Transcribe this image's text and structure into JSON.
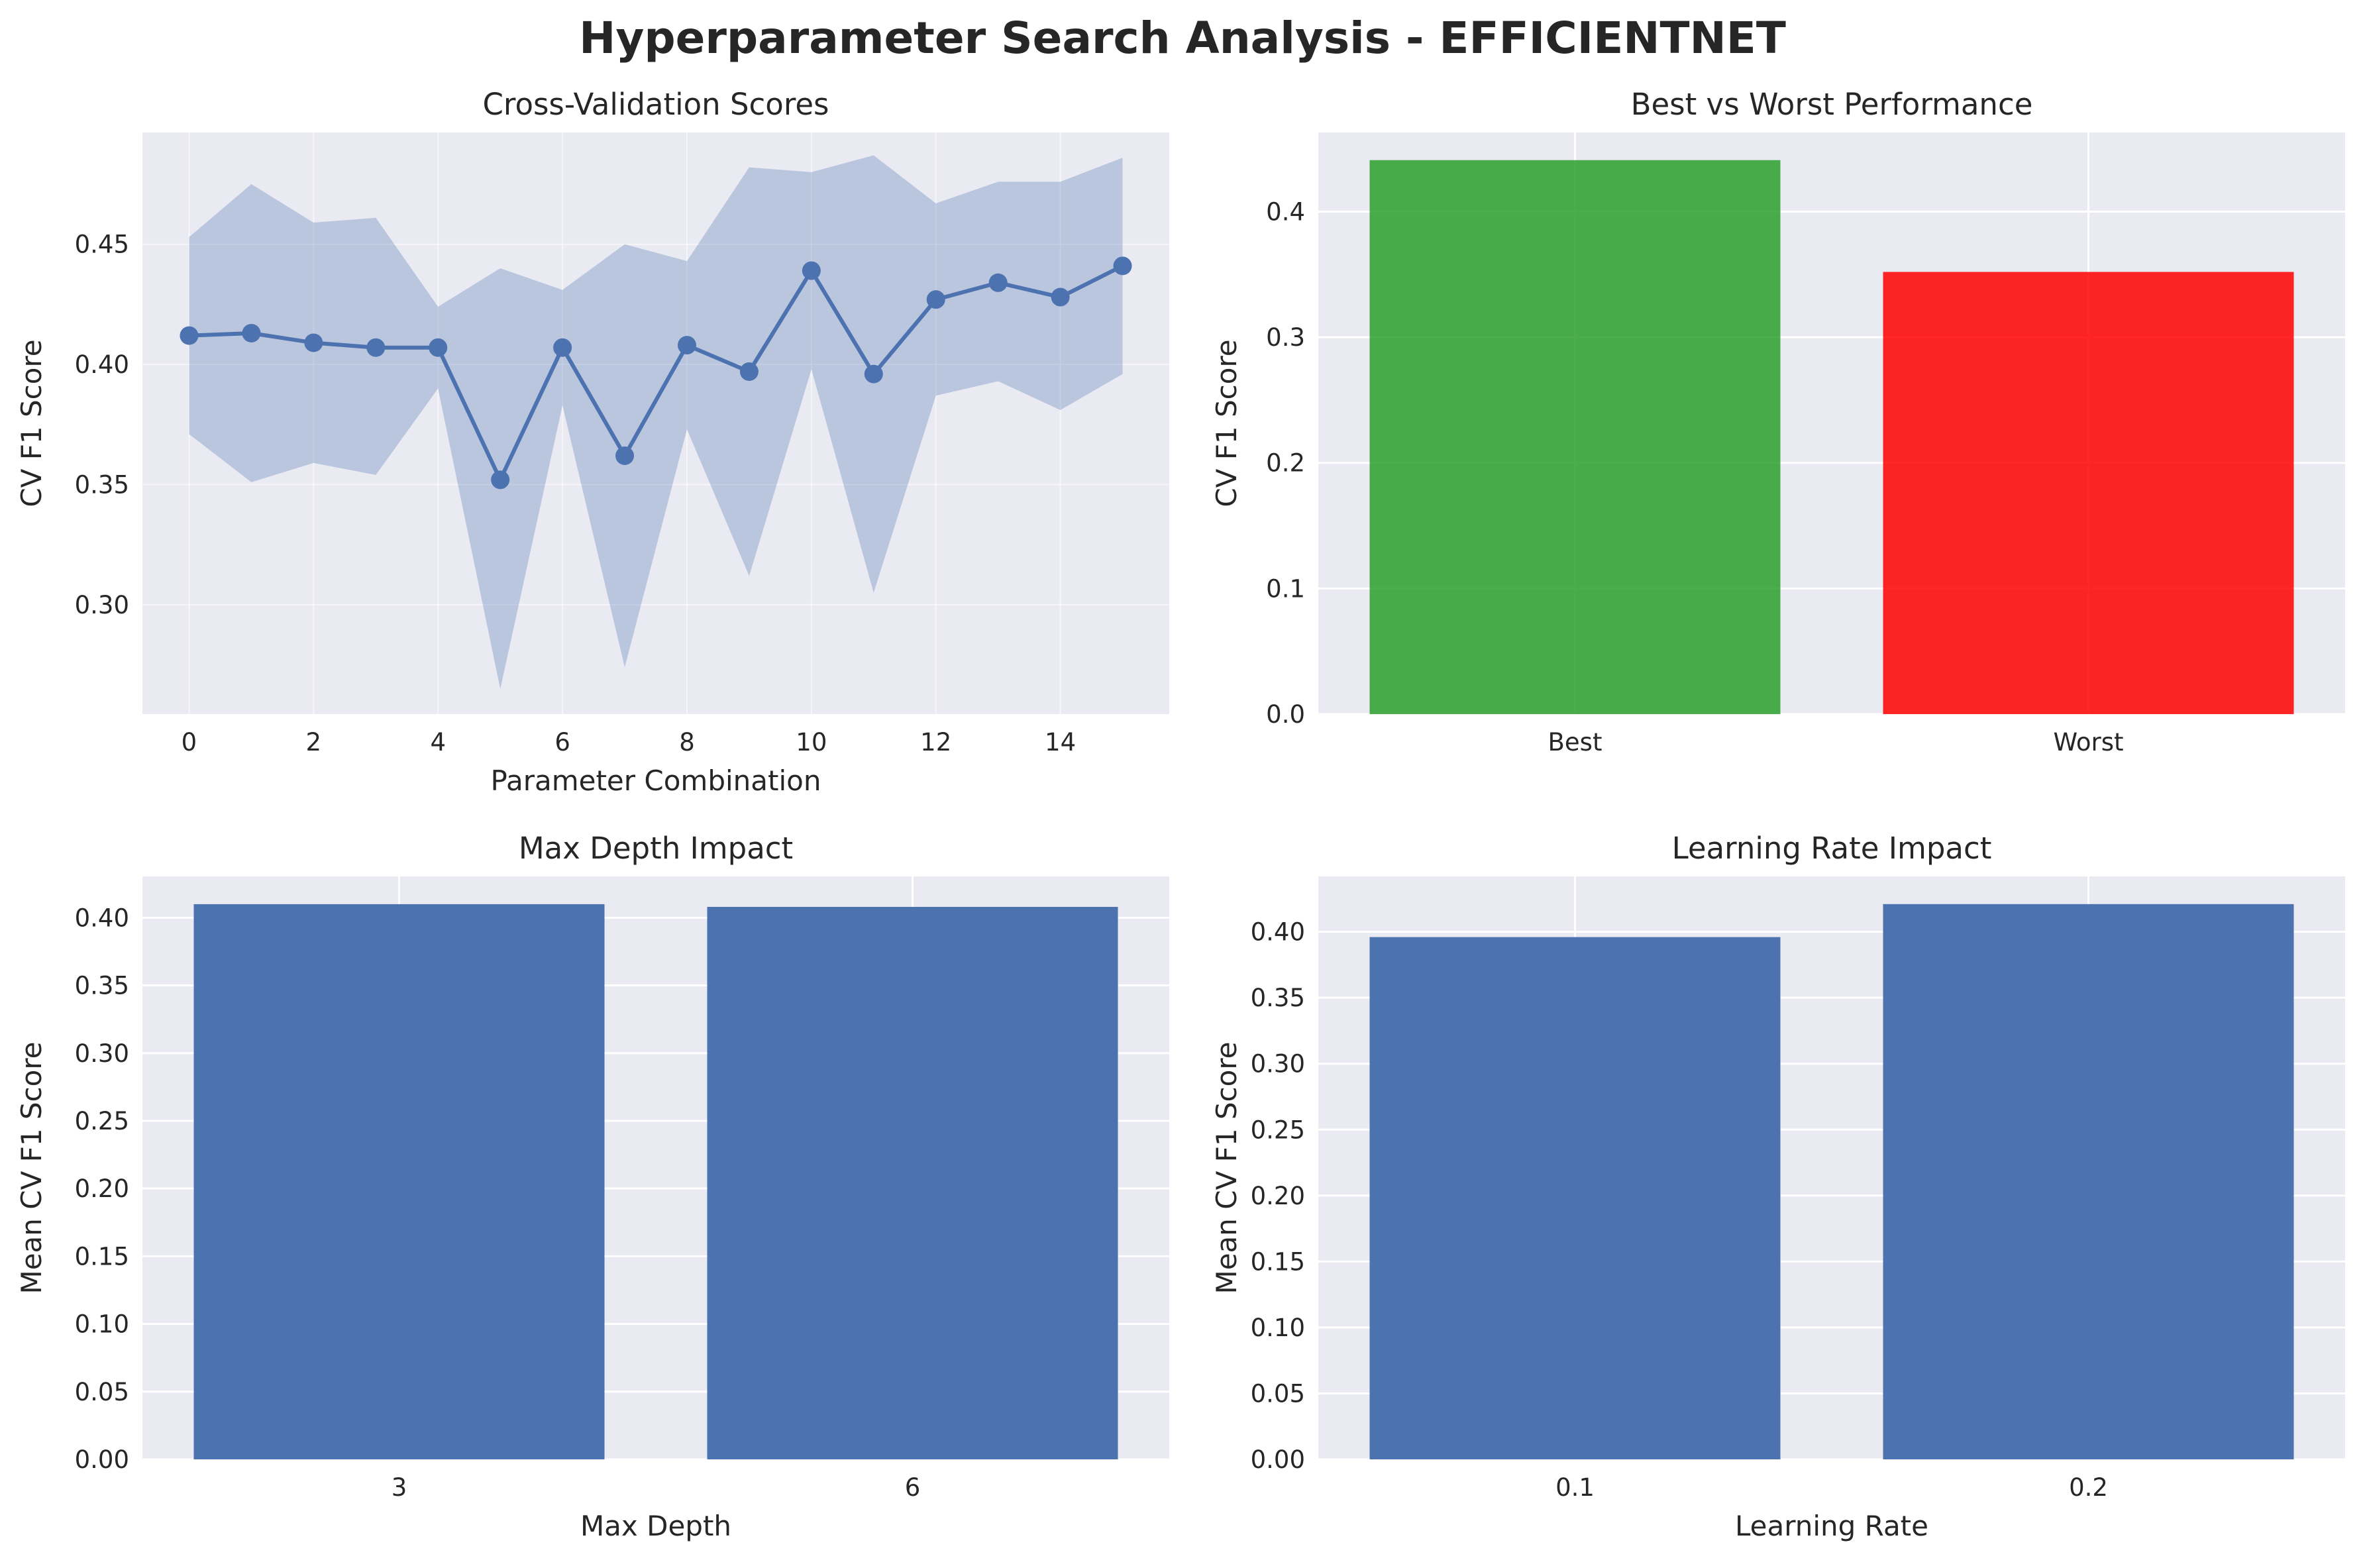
{
  "figure": {
    "title": "Hyperparameter Search Analysis - EFFICIENTNET"
  },
  "chart_data": [
    {
      "type": "line",
      "title": "Cross-Validation Scores",
      "xlabel": "Parameter Combination",
      "ylabel": "CV F1 Score",
      "x": [
        0,
        1,
        2,
        3,
        4,
        5,
        6,
        7,
        8,
        9,
        10,
        11,
        12,
        13,
        14,
        15
      ],
      "series": [
        {
          "values": [
            0.412,
            0.413,
            0.409,
            0.407,
            0.407,
            0.352,
            0.407,
            0.362,
            0.408,
            0.397,
            0.439,
            0.396,
            0.427,
            0.434,
            0.428,
            0.441
          ],
          "upper": [
            0.453,
            0.475,
            0.459,
            0.461,
            0.424,
            0.44,
            0.431,
            0.45,
            0.443,
            0.482,
            0.48,
            0.487,
            0.467,
            0.476,
            0.476,
            0.486
          ],
          "lower": [
            0.371,
            0.351,
            0.359,
            0.354,
            0.39,
            0.265,
            0.383,
            0.274,
            0.373,
            0.312,
            0.398,
            0.305,
            0.387,
            0.393,
            0.381,
            0.396
          ],
          "color": "#4c72b0"
        }
      ],
      "xlim": [
        -0.75,
        15.75
      ],
      "ylim": [
        0.2545,
        0.4965
      ],
      "xticks": [
        "0",
        "2",
        "4",
        "6",
        "8",
        "10",
        "12",
        "14"
      ],
      "yticks": [
        "0.30",
        "0.35",
        "0.40",
        "0.45"
      ],
      "grid": true
    },
    {
      "type": "bar",
      "title": "Best vs Worst Performance",
      "xlabel": "",
      "ylabel": "CV F1 Score",
      "categories": [
        "Best",
        "Worst"
      ],
      "values": [
        0.441,
        0.352
      ],
      "colors": [
        "#2ca02c",
        "#ff0000"
      ],
      "ylim": [
        0,
        0.463
      ],
      "yticks": [
        "0.0",
        "0.1",
        "0.2",
        "0.3",
        "0.4"
      ],
      "grid": true
    },
    {
      "type": "bar",
      "title": "Max Depth Impact",
      "xlabel": "Max Depth",
      "ylabel": "Mean CV F1 Score",
      "categories": [
        "3",
        "6"
      ],
      "values": [
        0.41,
        0.408
      ],
      "colors": [
        "#4c72b0",
        "#4c72b0"
      ],
      "ylim": [
        0,
        0.4305
      ],
      "yticks": [
        "0.00",
        "0.05",
        "0.10",
        "0.15",
        "0.20",
        "0.25",
        "0.30",
        "0.35",
        "0.40"
      ],
      "grid": true
    },
    {
      "type": "bar",
      "title": "Learning Rate Impact",
      "xlabel": "Learning Rate",
      "ylabel": "Mean CV F1 Score",
      "categories": [
        "0.1",
        "0.2"
      ],
      "values": [
        0.396,
        0.421
      ],
      "colors": [
        "#4c72b0",
        "#4c72b0"
      ],
      "ylim": [
        0,
        0.442
      ],
      "yticks": [
        "0.00",
        "0.05",
        "0.10",
        "0.15",
        "0.20",
        "0.25",
        "0.30",
        "0.35",
        "0.40"
      ],
      "grid": true
    }
  ]
}
